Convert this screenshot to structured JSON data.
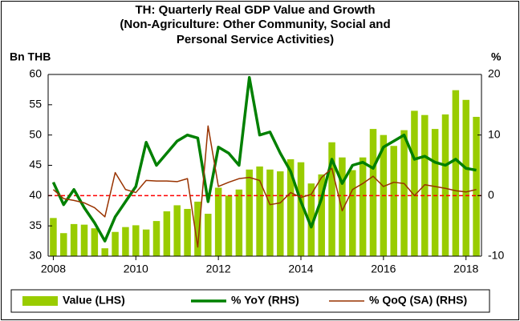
{
  "chart_data": {
    "type": "bar",
    "title": [
      "TH: Quarterly Real GDP Value and Growth",
      "(Non-Agriculture: Other Community, Social and",
      "Personal Service Activities)"
    ],
    "y_label": "Bn THB",
    "y2_label": "%",
    "categories": [
      "2008",
      null,
      null,
      null,
      null,
      null,
      null,
      null,
      "2010",
      null,
      null,
      null,
      null,
      null,
      null,
      null,
      "2012",
      null,
      null,
      null,
      null,
      null,
      null,
      null,
      "2014",
      null,
      null,
      null,
      null,
      null,
      null,
      null,
      "2016",
      null,
      null,
      null,
      null,
      null,
      null,
      null,
      "2018",
      null
    ],
    "series": [
      {
        "name": "Value (LHS)",
        "type": "bar",
        "color": "#99cc00",
        "values": [
          36.3,
          33.8,
          35.3,
          35.2,
          34.6,
          31.3,
          34.0,
          34.8,
          35.1,
          34.4,
          35.8,
          37.4,
          38.4,
          37.8,
          39.0,
          37.0,
          41.3,
          40.0,
          41.0,
          44.3,
          44.8,
          44.3,
          44.0,
          46.0,
          45.5,
          42.0,
          43.5,
          48.8,
          46.3,
          44.2,
          46.3,
          51.0,
          50.0,
          48.2,
          50.8,
          54.0,
          53.3,
          51.0,
          53.4,
          57.4,
          55.8,
          53.0
        ]
      },
      {
        "name": "% YoY (RHS)",
        "type": "line",
        "axis": "y2",
        "color": "#008000",
        "width": 3.5,
        "values": [
          2.2,
          -1.5,
          1.0,
          -2.0,
          -4.5,
          -7.5,
          -3.5,
          -1.0,
          1.5,
          8.8,
          5.0,
          7.0,
          9.0,
          10.0,
          9.5,
          -1.0,
          8.0,
          7.0,
          5.0,
          19.5,
          10.0,
          10.5,
          7.0,
          4.0,
          -1.0,
          -5.2,
          -0.5,
          6.0,
          2.0,
          5.0,
          5.5,
          4.5,
          8.0,
          9.0,
          10.0,
          6.0,
          6.5,
          5.5,
          5.0,
          6.0,
          4.5,
          4.2
        ]
      },
      {
        "name": "% QoQ (SA) (RHS)",
        "type": "line",
        "axis": "y2",
        "color": "#993300",
        "width": 1.5,
        "values": [
          1.0,
          -0.5,
          -0.8,
          -1.2,
          -2.0,
          -3.5,
          3.8,
          1.0,
          0.5,
          2.5,
          2.4,
          2.4,
          2.3,
          2.8,
          -8.5,
          11.5,
          1.5,
          2.2,
          2.8,
          3.0,
          2.5,
          -1.5,
          -1.2,
          0.5,
          -0.3,
          0.2,
          3.0,
          4.5,
          -2.5,
          1.0,
          2.0,
          3.2,
          1.5,
          2.2,
          2.0,
          0.0,
          1.8,
          1.5,
          1.2,
          0.8,
          0.6,
          1.0
        ]
      }
    ],
    "reference_line": {
      "axis": "y2",
      "value": 0,
      "color": "#ff0000"
    },
    "ylim": [
      30,
      60
    ],
    "yticks": [
      30,
      35,
      40,
      45,
      50,
      55,
      60
    ],
    "y2lim": [
      -10,
      20
    ],
    "y2ticks": [
      -10,
      0,
      10,
      20
    ],
    "legend": "bottom"
  }
}
